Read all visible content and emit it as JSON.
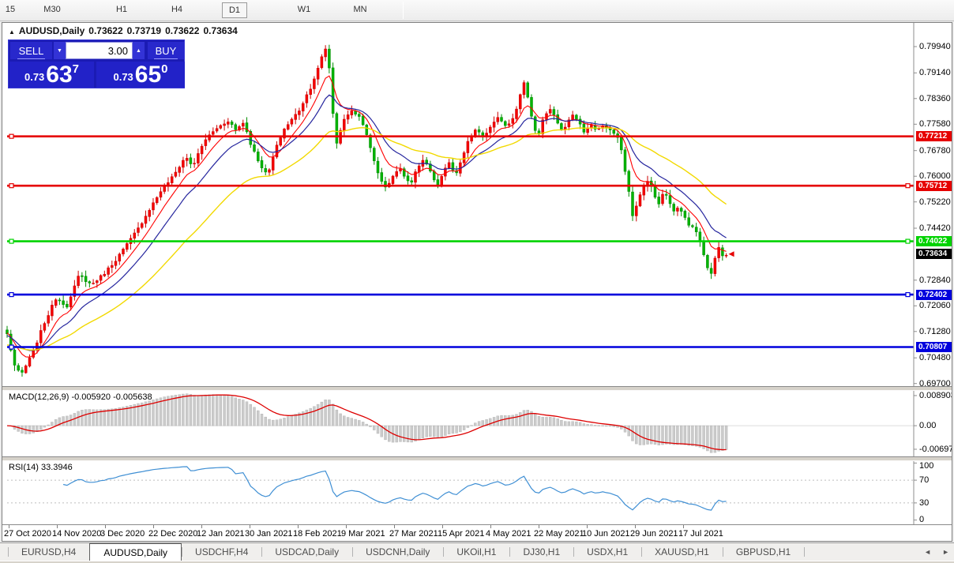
{
  "toolbar": {
    "timeframes": [
      {
        "label": "15",
        "active": false
      },
      {
        "label": "M30",
        "active": false
      },
      {
        "label": "H1",
        "active": false
      },
      {
        "label": "H4",
        "active": false
      },
      {
        "label": "D1",
        "active": true
      },
      {
        "label": "W1",
        "active": false
      },
      {
        "label": "MN",
        "active": false
      }
    ]
  },
  "window": {
    "title": {
      "collapse_icon": "▲",
      "symbol": "AUDUSD,Daily",
      "open": "0.73622",
      "high": "0.73719",
      "low": "0.73622",
      "close": "0.73634"
    },
    "trade_panel": {
      "sell_label": "SELL",
      "buy_label": "BUY",
      "volume": "3.00",
      "down_icon": "▼",
      "up_icon": "▲",
      "sell": {
        "prefix": "0.73",
        "pips": "63",
        "pipette": "7"
      },
      "buy": {
        "prefix": "0.73",
        "pips": "65",
        "pipette": "0"
      }
    }
  },
  "price_axis": {
    "ticks": [
      0.7994,
      0.7914,
      0.7836,
      0.7758,
      0.7678,
      0.76,
      0.7522,
      0.7442,
      0.7284,
      0.7206,
      0.7128,
      0.7048,
      0.697
    ]
  },
  "levels": [
    {
      "price": 0.77212,
      "color": "#e60000",
      "marker_left": true,
      "marker_right": false
    },
    {
      "price": 0.75712,
      "color": "#e60000",
      "marker_left": true,
      "marker_right": true
    },
    {
      "price": 0.74022,
      "color": "#00d300",
      "marker_left": true,
      "marker_right": true
    },
    {
      "price": 0.72402,
      "color": "#0000dd",
      "marker_left": true,
      "marker_right": true
    },
    {
      "price": 0.70807,
      "color": "#0000dd",
      "marker_left": true,
      "marker_right": false
    }
  ],
  "current_price": {
    "value": 0.73634,
    "badge_color": "#000000"
  },
  "indicators": {
    "macd": {
      "label": "MACD(12,26,9) -0.005920 -0.005638",
      "axis_labels": [
        "0.008903",
        "0.00",
        "-0.00697"
      ],
      "axis_values": [
        0.008903,
        0,
        -0.00697
      ]
    },
    "rsi": {
      "label": "RSI(14) 33.3946",
      "axis_labels": [
        "100",
        "70",
        "30",
        "0"
      ],
      "axis_values": [
        100,
        70,
        30,
        0
      ],
      "level_lines": [
        70,
        30
      ]
    }
  },
  "date_axis": [
    "27 Oct 2020",
    "14 Nov 2020",
    "3 Dec 2020",
    "22 Dec 2020",
    "12 Jan 2021",
    "30 Jan 2021",
    "18 Feb 2021",
    "9 Mar 2021",
    "27 Mar 2021",
    "15 Apr 2021",
    "4 May 2021",
    "22 May 2021",
    "10 Jun 2021",
    "29 Jun 2021",
    "17 Jul 2021"
  ],
  "tabs": {
    "items": [
      {
        "label": "EURUSD,H4",
        "active": false
      },
      {
        "label": "AUDUSD,Daily",
        "active": true
      },
      {
        "label": "USDCHF,H4",
        "active": false
      },
      {
        "label": "USDCAD,Daily",
        "active": false
      },
      {
        "label": "USDCNH,Daily",
        "active": false
      },
      {
        "label": "UKOil,H1",
        "active": false
      },
      {
        "label": "DJ30,H1",
        "active": false
      },
      {
        "label": "USDX,H1",
        "active": false
      },
      {
        "label": "XAUUSD,H1",
        "active": false
      },
      {
        "label": "GBPUSD,H1",
        "active": false
      }
    ],
    "scroll_left": "◄",
    "scroll_right": "►"
  },
  "chart_data": {
    "type": "candlestick",
    "symbol": "AUDUSD",
    "timeframe": "Daily",
    "title": "AUDUSD,Daily",
    "current_ohlc": {
      "open": 0.73622,
      "high": 0.73719,
      "low": 0.73622,
      "close": 0.73634
    },
    "bid": 0.73637,
    "ask": 0.7365,
    "visible_price_range": [
      0.697,
      0.8008
    ],
    "candle_up_color": "#f40000",
    "candle_down_color": "#00b400",
    "horizontal_lines": [
      {
        "price": 0.77212,
        "color": "red"
      },
      {
        "price": 0.75712,
        "color": "red"
      },
      {
        "price": 0.74022,
        "color": "green"
      },
      {
        "price": 0.72402,
        "color": "blue"
      },
      {
        "price": 0.70807,
        "color": "blue"
      }
    ],
    "moving_averages": [
      {
        "color": "#ff0000",
        "speed": "fast"
      },
      {
        "color": "#26269e",
        "speed": "medium"
      },
      {
        "color": "#f2d900",
        "speed": "slow"
      }
    ],
    "close_path": [
      [
        0.0,
        0.712
      ],
      [
        0.011,
        0.702
      ],
      [
        0.019,
        0.6995
      ],
      [
        0.035,
        0.706
      ],
      [
        0.051,
        0.715
      ],
      [
        0.068,
        0.723
      ],
      [
        0.084,
        0.7205
      ],
      [
        0.1,
        0.73
      ],
      [
        0.117,
        0.727
      ],
      [
        0.133,
        0.73
      ],
      [
        0.149,
        0.734
      ],
      [
        0.166,
        0.739
      ],
      [
        0.182,
        0.744
      ],
      [
        0.198,
        0.75
      ],
      [
        0.215,
        0.756
      ],
      [
        0.231,
        0.76
      ],
      [
        0.248,
        0.766
      ],
      [
        0.258,
        0.763
      ],
      [
        0.275,
        0.771
      ],
      [
        0.291,
        0.7745
      ],
      [
        0.308,
        0.777
      ],
      [
        0.318,
        0.774
      ],
      [
        0.329,
        0.7765
      ],
      [
        0.34,
        0.769
      ],
      [
        0.351,
        0.764
      ],
      [
        0.362,
        0.76
      ],
      [
        0.373,
        0.768
      ],
      [
        0.384,
        0.774
      ],
      [
        0.395,
        0.777
      ],
      [
        0.406,
        0.78
      ],
      [
        0.422,
        0.787
      ],
      [
        0.433,
        0.793
      ],
      [
        0.442,
        0.7992
      ],
      [
        0.447,
        0.796
      ],
      [
        0.451,
        0.783
      ],
      [
        0.458,
        0.77
      ],
      [
        0.466,
        0.776
      ],
      [
        0.477,
        0.78
      ],
      [
        0.487,
        0.779
      ],
      [
        0.498,
        0.774
      ],
      [
        0.504,
        0.77
      ],
      [
        0.512,
        0.763
      ],
      [
        0.52,
        0.759
      ],
      [
        0.528,
        0.756
      ],
      [
        0.536,
        0.76
      ],
      [
        0.545,
        0.763
      ],
      [
        0.553,
        0.76
      ],
      [
        0.56,
        0.757
      ],
      [
        0.569,
        0.762
      ],
      [
        0.58,
        0.765
      ],
      [
        0.591,
        0.76
      ],
      [
        0.6,
        0.757
      ],
      [
        0.607,
        0.762
      ],
      [
        0.615,
        0.764
      ],
      [
        0.624,
        0.76
      ],
      [
        0.632,
        0.765
      ],
      [
        0.64,
        0.77
      ],
      [
        0.651,
        0.774
      ],
      [
        0.662,
        0.772
      ],
      [
        0.673,
        0.775
      ],
      [
        0.684,
        0.778
      ],
      [
        0.695,
        0.775
      ],
      [
        0.706,
        0.779
      ],
      [
        0.714,
        0.785
      ],
      [
        0.72,
        0.789
      ],
      [
        0.725,
        0.783
      ],
      [
        0.731,
        0.776
      ],
      [
        0.738,
        0.772
      ],
      [
        0.746,
        0.778
      ],
      [
        0.755,
        0.78
      ],
      [
        0.763,
        0.7775
      ],
      [
        0.771,
        0.774
      ],
      [
        0.779,
        0.776
      ],
      [
        0.787,
        0.779
      ],
      [
        0.796,
        0.776
      ],
      [
        0.804,
        0.773
      ],
      [
        0.811,
        0.776
      ],
      [
        0.82,
        0.774
      ],
      [
        0.829,
        0.7755
      ],
      [
        0.836,
        0.774
      ],
      [
        0.844,
        0.773
      ],
      [
        0.853,
        0.77
      ],
      [
        0.858,
        0.763
      ],
      [
        0.864,
        0.756
      ],
      [
        0.87,
        0.748
      ],
      [
        0.877,
        0.752
      ],
      [
        0.883,
        0.756
      ],
      [
        0.891,
        0.759
      ],
      [
        0.899,
        0.755
      ],
      [
        0.905,
        0.751
      ],
      [
        0.913,
        0.755
      ],
      [
        0.92,
        0.753
      ],
      [
        0.927,
        0.749
      ],
      [
        0.934,
        0.751
      ],
      [
        0.942,
        0.748
      ],
      [
        0.949,
        0.745
      ],
      [
        0.956,
        0.744
      ],
      [
        0.962,
        0.741
      ],
      [
        0.967,
        0.738
      ],
      [
        0.973,
        0.733
      ],
      [
        0.978,
        0.729
      ],
      [
        0.983,
        0.734
      ],
      [
        0.989,
        0.739
      ],
      [
        0.994,
        0.736
      ],
      [
        1.0,
        0.7363
      ]
    ],
    "macd": {
      "params": [
        12,
        26,
        9
      ],
      "current_main": -0.00592,
      "current_signal": -0.005638,
      "axis": [
        0.008903,
        0.0,
        -0.00697
      ]
    },
    "rsi": {
      "period": 14,
      "current": 33.3946,
      "levels": [
        70,
        30
      ],
      "axis_range": [
        0,
        100
      ]
    }
  }
}
